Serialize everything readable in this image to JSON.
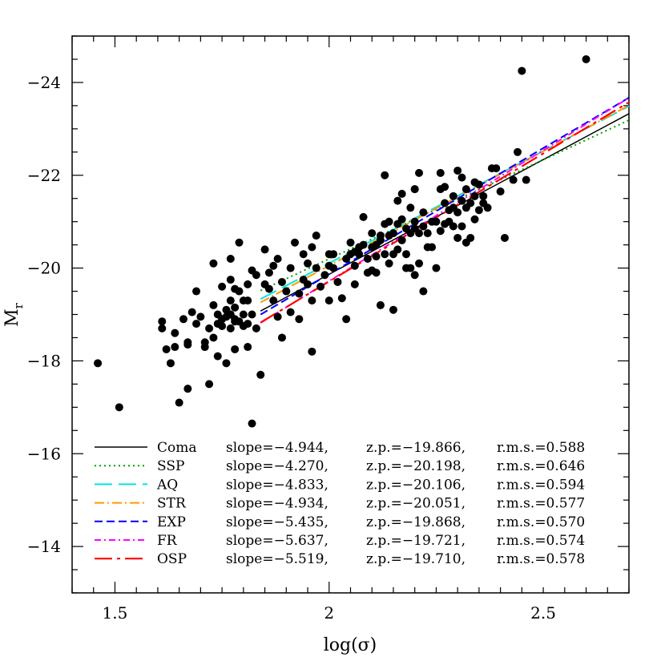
{
  "chart_data": {
    "type": "scatter",
    "title": "",
    "xlabel": "log(σ)",
    "ylabel_main": "M",
    "ylabel_sub": "r",
    "xlim": [
      1.4,
      2.7
    ],
    "ylim": [
      -13,
      -25
    ],
    "x_ticks": [
      1.5,
      2,
      2.5
    ],
    "x_tick_labels": [
      "1.5",
      "2",
      "2.5"
    ],
    "y_ticks": [
      -14,
      -16,
      -18,
      -20,
      -22,
      -24
    ],
    "y_tick_labels": [
      "−14",
      "−16",
      "−18",
      "−20",
      "−22",
      "−24"
    ],
    "grid": false,
    "legend_position": "bottom",
    "points": [
      [
        1.46,
        -17.95
      ],
      [
        1.51,
        -17.0
      ],
      [
        1.61,
        -18.85
      ],
      [
        1.61,
        -18.7
      ],
      [
        1.62,
        -18.25
      ],
      [
        1.63,
        -17.95
      ],
      [
        1.64,
        -18.6
      ],
      [
        1.64,
        -18.3
      ],
      [
        1.65,
        -17.1
      ],
      [
        1.66,
        -18.9
      ],
      [
        1.67,
        -18.4
      ],
      [
        1.67,
        -18.35
      ],
      [
        1.67,
        -17.4
      ],
      [
        1.68,
        -19.05
      ],
      [
        1.69,
        -18.8
      ],
      [
        1.69,
        -19.5
      ],
      [
        1.7,
        -18.95
      ],
      [
        1.71,
        -18.4
      ],
      [
        1.71,
        -18.3
      ],
      [
        1.72,
        -18.7
      ],
      [
        1.72,
        -17.5
      ],
      [
        1.73,
        -18.5
      ],
      [
        1.73,
        -19.2
      ],
      [
        1.73,
        -20.1
      ],
      [
        1.74,
        -19.0
      ],
      [
        1.74,
        -18.8
      ],
      [
        1.74,
        -18.1
      ],
      [
        1.75,
        -18.9
      ],
      [
        1.75,
        -19.6
      ],
      [
        1.75,
        -18.75
      ],
      [
        1.76,
        -19.1
      ],
      [
        1.76,
        -18.95
      ],
      [
        1.76,
        -17.95
      ],
      [
        1.77,
        -19.3
      ],
      [
        1.77,
        -18.7
      ],
      [
        1.77,
        -19.0
      ],
      [
        1.77,
        -20.2
      ],
      [
        1.77,
        -19.75
      ],
      [
        1.78,
        -18.85
      ],
      [
        1.78,
        -19.15
      ],
      [
        1.78,
        -19.55
      ],
      [
        1.78,
        -18.9
      ],
      [
        1.78,
        -18.25
      ],
      [
        1.79,
        -19.5
      ],
      [
        1.79,
        -20.55
      ],
      [
        1.79,
        -18.85
      ],
      [
        1.8,
        -19.3
      ],
      [
        1.8,
        -19.0
      ],
      [
        1.8,
        -18.75
      ],
      [
        1.81,
        -19.65
      ],
      [
        1.81,
        -19.3
      ],
      [
        1.81,
        -18.8
      ],
      [
        1.81,
        -18.3
      ],
      [
        1.82,
        -19.95
      ],
      [
        1.82,
        -19.0
      ],
      [
        1.82,
        -16.65
      ],
      [
        1.83,
        -19.85
      ],
      [
        1.83,
        -18.7
      ],
      [
        1.84,
        -17.7
      ],
      [
        1.85,
        -19.65
      ],
      [
        1.85,
        -20.4
      ],
      [
        1.86,
        -19.55
      ],
      [
        1.86,
        -19.9
      ],
      [
        1.87,
        -20.05
      ],
      [
        1.87,
        -19.3
      ],
      [
        1.88,
        -20.2
      ],
      [
        1.88,
        -18.95
      ],
      [
        1.89,
        -19.7
      ],
      [
        1.89,
        -18.5
      ],
      [
        1.9,
        -19.5
      ],
      [
        1.91,
        -20.0
      ],
      [
        1.91,
        -19.05
      ],
      [
        1.92,
        -20.55
      ],
      [
        1.93,
        -19.45
      ],
      [
        1.93,
        -18.9
      ],
      [
        1.94,
        -19.75
      ],
      [
        1.94,
        -20.3
      ],
      [
        1.95,
        -20.1
      ],
      [
        1.95,
        -19.65
      ],
      [
        1.96,
        -18.2
      ],
      [
        1.96,
        -20.45
      ],
      [
        1.96,
        -19.3
      ],
      [
        1.97,
        -20.7
      ],
      [
        1.97,
        -20.0
      ],
      [
        1.98,
        -19.6
      ],
      [
        1.99,
        -19.85
      ],
      [
        2.0,
        -20.05
      ],
      [
        2.0,
        -19.3
      ],
      [
        2.01,
        -20.3
      ],
      [
        2.01,
        -20.0
      ],
      [
        2.02,
        -19.7
      ],
      [
        2.03,
        -19.35
      ],
      [
        2.04,
        -20.2
      ],
      [
        2.04,
        -18.9
      ],
      [
        2.05,
        -20.3
      ],
      [
        2.05,
        -20.55
      ],
      [
        2.06,
        -20.05
      ],
      [
        2.06,
        -19.65
      ],
      [
        2.07,
        -20.3
      ],
      [
        2.07,
        -20.45
      ],
      [
        2.08,
        -20.5
      ],
      [
        2.08,
        -21.1
      ],
      [
        2.09,
        -19.9
      ],
      [
        2.09,
        -20.2
      ],
      [
        2.1,
        -19.95
      ],
      [
        2.1,
        -20.45
      ],
      [
        2.1,
        -20.75
      ],
      [
        2.11,
        -20.5
      ],
      [
        2.11,
        -20.25
      ],
      [
        2.11,
        -19.9
      ],
      [
        2.12,
        -20.6
      ],
      [
        2.12,
        -19.2
      ],
      [
        2.12,
        -20.7
      ],
      [
        2.13,
        -20.3
      ],
      [
        2.13,
        -20.95
      ],
      [
        2.14,
        -20.7
      ],
      [
        2.14,
        -20.1
      ],
      [
        2.14,
        -21.0
      ],
      [
        2.15,
        -20.3
      ],
      [
        2.15,
        -20.75
      ],
      [
        2.15,
        -19.1
      ],
      [
        2.16,
        -20.4
      ],
      [
        2.16,
        -20.95
      ],
      [
        2.16,
        -21.45
      ],
      [
        2.17,
        -20.6
      ],
      [
        2.17,
        -21.05
      ],
      [
        2.17,
        -21.6
      ],
      [
        2.18,
        -20.0
      ],
      [
        2.18,
        -20.85
      ],
      [
        2.18,
        -20.3
      ],
      [
        2.19,
        -21.3
      ],
      [
        2.19,
        -20.75
      ],
      [
        2.19,
        -20.0
      ],
      [
        2.2,
        -21.7
      ],
      [
        2.2,
        -20.85
      ],
      [
        2.2,
        -21.0
      ],
      [
        2.2,
        -19.85
      ],
      [
        2.21,
        -22.05
      ],
      [
        2.21,
        -20.1
      ],
      [
        2.21,
        -20.75
      ],
      [
        2.22,
        -20.9
      ],
      [
        2.22,
        -21.2
      ],
      [
        2.22,
        -19.5
      ],
      [
        2.23,
        -20.45
      ],
      [
        2.23,
        -20.75
      ],
      [
        2.24,
        -21.0
      ],
      [
        2.24,
        -20.45
      ],
      [
        2.25,
        -21.0
      ],
      [
        2.25,
        -20.0
      ],
      [
        2.26,
        -21.7
      ],
      [
        2.26,
        -20.8
      ],
      [
        2.27,
        -21.4
      ],
      [
        2.27,
        -20.95
      ],
      [
        2.27,
        -21.75
      ],
      [
        2.28,
        -21.0
      ],
      [
        2.28,
        -21.25
      ],
      [
        2.29,
        -20.9
      ],
      [
        2.29,
        -21.3
      ],
      [
        2.29,
        -21.55
      ],
      [
        2.3,
        -22.1
      ],
      [
        2.3,
        -20.65
      ],
      [
        2.3,
        -21.2
      ],
      [
        2.31,
        -20.9
      ],
      [
        2.31,
        -21.45
      ],
      [
        2.31,
        -21.95
      ],
      [
        2.32,
        -20.55
      ],
      [
        2.32,
        -21.3
      ],
      [
        2.32,
        -21.7
      ],
      [
        2.33,
        -20.65
      ],
      [
        2.33,
        -21.4
      ],
      [
        2.34,
        -21.05
      ],
      [
        2.34,
        -21.55
      ],
      [
        2.34,
        -21.85
      ],
      [
        2.35,
        -21.25
      ],
      [
        2.35,
        -21.8
      ],
      [
        2.36,
        -21.4
      ],
      [
        2.36,
        -21.55
      ],
      [
        2.37,
        -21.3
      ],
      [
        2.38,
        -22.15
      ],
      [
        2.39,
        -22.15
      ],
      [
        2.4,
        -21.65
      ],
      [
        2.41,
        -20.65
      ],
      [
        2.43,
        -21.9
      ],
      [
        2.44,
        -22.5
      ],
      [
        2.45,
        -24.25
      ],
      [
        2.46,
        -21.9
      ],
      [
        2.6,
        -24.5
      ],
      [
        2.13,
        -22.0
      ],
      [
        2.26,
        -22.05
      ],
      [
        2.2,
        -21.7
      ],
      [
        2.06,
        -20.35
      ],
      [
        2.0,
        -20.3
      ]
    ],
    "series": [
      {
        "name": "Coma",
        "slope": "−4.944",
        "zp": "−19.866",
        "rms": "0.588",
        "color": "#000000",
        "dash": "",
        "width": 1.5,
        "x0": 1.84,
        "x1": 2.7,
        "m": -4.944,
        "c": -19.866
      },
      {
        "name": "SSP",
        "slope": "−4.270",
        "zp": "−20.198",
        "rms": "0.646",
        "color": "#00a000",
        "dash": "2,4",
        "width": 2,
        "x0": 1.84,
        "x1": 2.7,
        "m": -4.27,
        "c": -20.198
      },
      {
        "name": "AQ",
        "slope": "−4.833",
        "zp": "−20.106",
        "rms": "0.594",
        "color": "#00e5e5",
        "dash": "22,8",
        "width": 2,
        "x0": 1.84,
        "x1": 2.7,
        "m": -4.833,
        "c": -20.106
      },
      {
        "name": "STR",
        "slope": "−4.934",
        "zp": "−20.051",
        "rms": "0.577",
        "color": "#ff9900",
        "dash": "12,4,2,4",
        "width": 2,
        "x0": 1.84,
        "x1": 2.7,
        "m": -4.934,
        "c": -20.051
      },
      {
        "name": "EXP",
        "slope": "−5.435",
        "zp": "−19.868",
        "rms": "0.570",
        "color": "#0000ff",
        "dash": "10,5",
        "width": 2,
        "x0": 1.84,
        "x1": 2.7,
        "m": -5.435,
        "c": -19.868
      },
      {
        "name": "FR",
        "slope": "−5.637",
        "zp": "−19.721",
        "rms": "0.574",
        "color": "#ff00ff",
        "dash": "8,4,2,4",
        "width": 2,
        "x0": 1.84,
        "x1": 2.7,
        "m": -5.637,
        "c": -19.721
      },
      {
        "name": "OSP",
        "slope": "−5.519",
        "zp": "−19.710",
        "rms": "0.578",
        "color": "#ff0000",
        "dash": "22,6,4,6",
        "width": 2.2,
        "x0": 1.84,
        "x1": 2.7,
        "m": -5.519,
        "c": -19.71
      }
    ],
    "legend_labels": {
      "slope": "slope=",
      "zp": "z.p.=",
      "rms": "r.m.s.="
    }
  }
}
